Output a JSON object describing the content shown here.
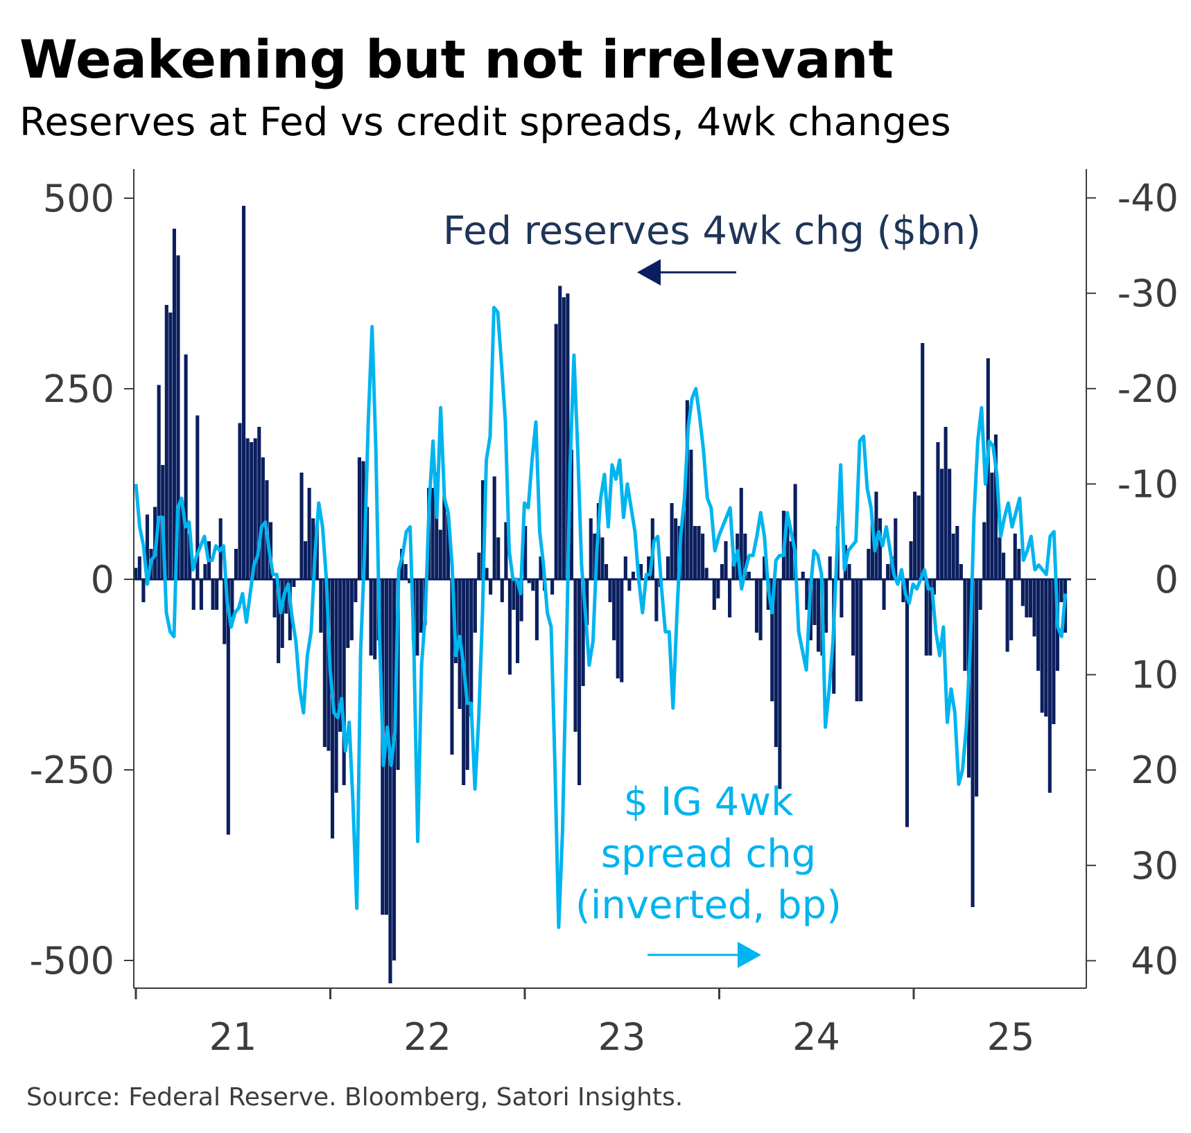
{
  "title": "Weakening but not irrelevant",
  "subtitle": "Reserves at Fed vs credit spreads, 4wk changes",
  "source": "Source: Federal Reserve. Bloomberg, Satori Insights.",
  "colors": {
    "reserves": "#0b1f5e",
    "spread": "#00b4ef",
    "reserves_label": "#1f3558",
    "axis": "#3c3c3c"
  },
  "chart_data": {
    "type": "bar+line",
    "title": "Weakening but not irrelevant",
    "subtitle": "Reserves at Fed vs credit spreads, 4wk changes",
    "x_range": [
      2021.0,
      2025.78
    ],
    "x_ticks": [
      2021,
      2022,
      2023,
      2024,
      2025
    ],
    "x_tick_labels": [
      "21",
      "22",
      "23",
      "24",
      "25"
    ],
    "y_left": {
      "label": "Fed reserves 4wk chg ($bn)",
      "ylim": [
        -535,
        535
      ],
      "ticks": [
        500,
        250,
        0,
        -250,
        -500
      ],
      "tick_labels": [
        "500",
        "250",
        "0",
        "-250",
        "-500"
      ]
    },
    "y_right": {
      "label": "$ IG 4wk spread chg (inverted, bp)",
      "ylim": [
        -43,
        43
      ],
      "inverted": true,
      "ticks": [
        -40,
        -30,
        -20,
        -10,
        0,
        10,
        20,
        30,
        40
      ],
      "tick_labels": [
        "-40",
        "-30",
        "-20",
        "-10",
        "0",
        "10",
        "20",
        "30",
        "40"
      ]
    },
    "annotations": {
      "reserves": "Fed reserves 4wk chg ($bn)",
      "spread_lines": [
        "$ IG 4wk",
        "spread chg",
        "(inverted, bp)"
      ]
    },
    "grid": false,
    "series": [
      {
        "name": "Fed reserves 4wk chg ($bn)",
        "type": "bar",
        "axis": "left",
        "values": [
          15,
          30,
          -30,
          85,
          40,
          95,
          255,
          150,
          360,
          350,
          460,
          425,
          100,
          295,
          60,
          -40,
          215,
          -40,
          20,
          50,
          -40,
          -40,
          80,
          -85,
          -335,
          -50,
          40,
          205,
          490,
          185,
          180,
          185,
          200,
          160,
          130,
          75,
          -50,
          -110,
          -90,
          -45,
          -80,
          -10,
          0,
          140,
          50,
          120,
          80,
          70,
          -70,
          -220,
          -225,
          -340,
          -280,
          -200,
          -270,
          -90,
          -80,
          -30,
          160,
          155,
          95,
          -100,
          -105,
          -80,
          -440,
          -440,
          -530,
          -500,
          -250,
          40,
          20,
          -5,
          -80,
          -100,
          -70,
          -60,
          120,
          120,
          140,
          65,
          110,
          85,
          -230,
          -110,
          -170,
          -270,
          -250,
          -180,
          -70,
          35,
          130,
          15,
          -20,
          135,
          55,
          -30,
          75,
          -125,
          -40,
          -110,
          -55,
          70,
          -5,
          -15,
          -80,
          30,
          -15,
          0,
          -20,
          335,
          385,
          370,
          375,
          170,
          -200,
          -270,
          -140,
          -60,
          80,
          60,
          100,
          55,
          20,
          -30,
          -80,
          -130,
          -135,
          30,
          -15,
          10,
          0,
          20,
          0,
          30,
          80,
          -55,
          -10,
          0,
          30,
          100,
          80,
          70,
          90,
          235,
          170,
          70,
          70,
          60,
          15,
          0,
          -40,
          -25,
          20,
          50,
          -50,
          25,
          60,
          120,
          60,
          10,
          0,
          -70,
          -80,
          30,
          -40,
          -160,
          -220,
          -275,
          90,
          80,
          50,
          125,
          0,
          10,
          -40,
          -80,
          -60,
          -95,
          -100,
          -70,
          30,
          -150,
          70,
          -50,
          45,
          20,
          -100,
          -160,
          -160,
          0,
          40,
          75,
          115,
          80,
          -40,
          20,
          30,
          80,
          0,
          -30,
          -325,
          50,
          115,
          110,
          310,
          -100,
          -100,
          -20,
          180,
          145,
          200,
          145,
          60,
          70,
          20,
          -120,
          -260,
          -430,
          -285,
          -40,
          75,
          290,
          140,
          190,
          55,
          35,
          -95,
          -80,
          60,
          40,
          -35,
          -50,
          -50,
          -75,
          -120,
          -175,
          -180,
          -280,
          -190,
          -120,
          -30,
          -70
        ]
      },
      {
        "name": "$ IG 4wk spread chg (inverted, bp)",
        "type": "line",
        "axis": "right",
        "values": [
          -10,
          -5.5,
          -3.5,
          0.5,
          -2,
          -2.5,
          -6.5,
          -6.5,
          3.5,
          5.5,
          6,
          -7.5,
          -8.5,
          -5.5,
          -6,
          -1,
          -2.5,
          -3.5,
          -4.5,
          -2,
          -2,
          -3.5,
          -3,
          -3.5,
          2.5,
          5,
          3.5,
          3,
          1.5,
          4.5,
          1.5,
          -1.5,
          -2.5,
          -5.5,
          -6,
          -3,
          -0.5,
          -0.5,
          3.5,
          1.5,
          0.5,
          4,
          6.5,
          11.5,
          14,
          8,
          5.5,
          -2.5,
          -8,
          -5.5,
          0,
          9.5,
          14,
          14.5,
          12.5,
          18,
          15,
          23.5,
          34.5,
          7.5,
          -2.5,
          -16.5,
          -26.5,
          -13.5,
          6.5,
          19.5,
          15.5,
          19.5,
          16,
          -1,
          -2.5,
          -5,
          -5.5,
          7.5,
          27.5,
          9,
          3.5,
          -8,
          -14.5,
          -6.5,
          -18,
          -8.5,
          -7,
          -1.5,
          8,
          6,
          9,
          13,
          13,
          22,
          14.5,
          3.5,
          -12.5,
          -15,
          -28.5,
          -28,
          -22.5,
          -16.5,
          -3,
          0,
          0,
          1.5,
          -8,
          -7.5,
          -12.5,
          -16.5,
          -5,
          -1.5,
          3.5,
          5,
          19.5,
          36.5,
          26.5,
          8,
          -12,
          -23.5,
          -13.5,
          -1.5,
          3.5,
          9,
          6.5,
          -3,
          -8.5,
          -11,
          -5.5,
          -12,
          -10.5,
          -12.5,
          -6.5,
          -10,
          -7.5,
          -5,
          0,
          3.5,
          -0.5,
          -0.5,
          -4,
          -4.5,
          1,
          5.5,
          5.5,
          13.5,
          4,
          -4.5,
          -8.5,
          -16,
          -19,
          -20,
          -17,
          -13.5,
          -8.5,
          -7.5,
          -3,
          -4.5,
          -5.5,
          -6.5,
          -7.5,
          -1.5,
          -3,
          1,
          -1,
          -2.5,
          -2.5,
          -4.5,
          -7,
          -4.5,
          1,
          3.5,
          -2,
          -2.5,
          -2.5,
          -7,
          -5,
          -3,
          5.5,
          7.5,
          9.5,
          1.5,
          -3,
          -2.5,
          -0.5,
          15.5,
          11.5,
          6.5,
          -2.5,
          -12,
          -1,
          -3,
          -3.5,
          -4,
          -14.5,
          -15,
          -9.5,
          -7.5,
          -3,
          -5,
          -3.5,
          -5.5,
          -3,
          -0.5,
          0.5,
          -1,
          1.5,
          2.5,
          0.5,
          1,
          0,
          -1,
          1,
          1,
          5.5,
          8,
          5,
          15,
          11.5,
          14,
          21.5,
          20,
          15.5,
          7.5,
          -6.5,
          -14.5,
          -18,
          -10,
          -14.5,
          -14,
          -11,
          -4.5,
          -6.5,
          -8,
          -5.5,
          -7,
          -8.5,
          -2,
          -3,
          -4.5,
          -1,
          -1.5,
          -1,
          -0.5,
          -4.5,
          -5,
          5,
          6,
          1.5
        ]
      }
    ]
  }
}
